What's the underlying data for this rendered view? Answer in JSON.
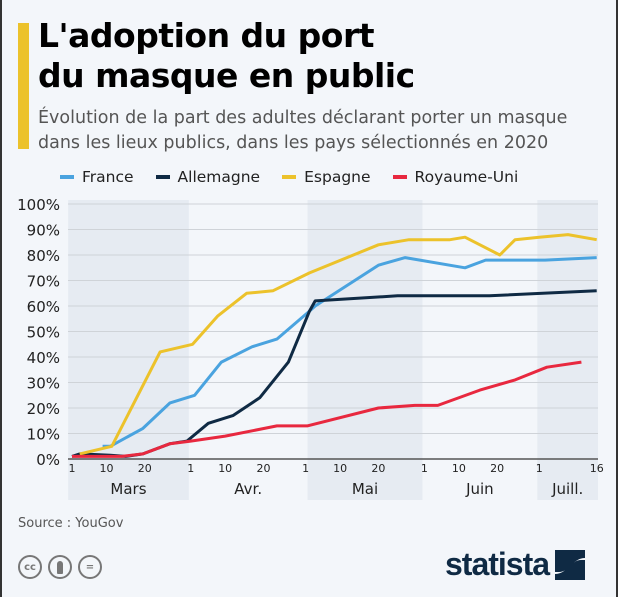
{
  "title_line1": "L'adoption du port",
  "title_line2": "du masque en public",
  "subtitle_line1": "Évolution de la part des adultes déclarant porter un masque",
  "subtitle_line2": "dans les lieux publics, dans les pays sélectionnés en 2020",
  "source": "Source : YouGov",
  "logo": "statista",
  "icons": [
    "cc-icon",
    "by-icon",
    "nd-icon"
  ],
  "chart_data": {
    "type": "line",
    "title": "L'adoption du port du masque en public",
    "xlabel": "",
    "ylabel": "",
    "x_unit": "days since 1 March 2020",
    "xlim": [
      0,
      137
    ],
    "ylim": [
      0,
      100
    ],
    "yticks": [
      0,
      10,
      20,
      30,
      40,
      50,
      60,
      70,
      80,
      90,
      100
    ],
    "ytick_labels": [
      "0%",
      "10%",
      "20%",
      "30%",
      "40%",
      "50%",
      "60%",
      "70%",
      "80%",
      "90%",
      "100%"
    ],
    "xticks": [
      {
        "day": 0,
        "label": "1"
      },
      {
        "day": 9,
        "label": "10"
      },
      {
        "day": 19,
        "label": "20"
      },
      {
        "day": 31,
        "label": "1"
      },
      {
        "day": 40,
        "label": "10"
      },
      {
        "day": 50,
        "label": "20"
      },
      {
        "day": 61,
        "label": "1"
      },
      {
        "day": 70,
        "label": "10"
      },
      {
        "day": 80,
        "label": "20"
      },
      {
        "day": 92,
        "label": "1"
      },
      {
        "day": 101,
        "label": "10"
      },
      {
        "day": 111,
        "label": "20"
      },
      {
        "day": 122,
        "label": "1"
      },
      {
        "day": 137,
        "label": "16"
      }
    ],
    "months": [
      {
        "label": "Mars",
        "start": -1,
        "end": 30.5,
        "shaded": true
      },
      {
        "label": "Avr.",
        "start": 30.5,
        "end": 61.5,
        "shaded": false
      },
      {
        "label": "Mai",
        "start": 61.5,
        "end": 91.5,
        "shaded": true
      },
      {
        "label": "Juin",
        "start": 91.5,
        "end": 121.5,
        "shaded": false
      },
      {
        "label": "Juill.",
        "start": 121.5,
        "end": 138,
        "shaded": true
      }
    ],
    "grid": true,
    "legend_position": "top",
    "series": [
      {
        "name": "France",
        "color": "#4aa3df",
        "points": [
          [
            8,
            5
          ],
          [
            10,
            5
          ],
          [
            18.5,
            12
          ],
          [
            25.6,
            22
          ],
          [
            32,
            25
          ],
          [
            39,
            38
          ],
          [
            47,
            44
          ],
          [
            53.5,
            47
          ],
          [
            62,
            58
          ],
          [
            63.5,
            60
          ],
          [
            80,
            76
          ],
          [
            87,
            79
          ],
          [
            102.6,
            75
          ],
          [
            108,
            78
          ],
          [
            123.5,
            78
          ],
          [
            137,
            79
          ]
        ]
      },
      {
        "name": "Allemagne",
        "color": "#0f2a44",
        "points": [
          [
            0,
            1
          ],
          [
            2,
            2
          ],
          [
            10,
            1.5
          ],
          [
            14,
            1
          ],
          [
            18.5,
            2
          ],
          [
            25.6,
            6
          ],
          [
            30,
            7
          ],
          [
            35.6,
            14
          ],
          [
            42,
            17
          ],
          [
            49,
            24
          ],
          [
            56.5,
            38
          ],
          [
            62,
            58
          ],
          [
            63.5,
            62
          ],
          [
            85,
            64
          ],
          [
            109,
            64
          ],
          [
            137,
            66
          ]
        ]
      },
      {
        "name": "Espagne",
        "color": "#ecc22b",
        "points": [
          [
            2,
            2
          ],
          [
            10.4,
            5
          ],
          [
            23,
            42
          ],
          [
            31.5,
            45
          ],
          [
            38,
            56
          ],
          [
            45.6,
            65
          ],
          [
            52.5,
            66
          ],
          [
            62,
            73
          ],
          [
            80,
            84
          ],
          [
            88,
            86
          ],
          [
            98.7,
            86
          ],
          [
            102.6,
            87
          ],
          [
            111.7,
            80
          ],
          [
            115.7,
            86
          ],
          [
            122,
            87
          ],
          [
            129.5,
            88
          ],
          [
            137,
            86
          ]
        ]
      },
      {
        "name": "Royaume-Uni",
        "color": "#e8283f",
        "points": [
          [
            0,
            1
          ],
          [
            10,
            1
          ],
          [
            13,
            1
          ],
          [
            18.5,
            2
          ],
          [
            25.6,
            6
          ],
          [
            31,
            7
          ],
          [
            40,
            9
          ],
          [
            53.5,
            13
          ],
          [
            61.4,
            13
          ],
          [
            80,
            20
          ],
          [
            89.5,
            21
          ],
          [
            95.5,
            21
          ],
          [
            106.5,
            27
          ],
          [
            115.7,
            31
          ],
          [
            124,
            36
          ],
          [
            133,
            38
          ]
        ]
      }
    ]
  }
}
